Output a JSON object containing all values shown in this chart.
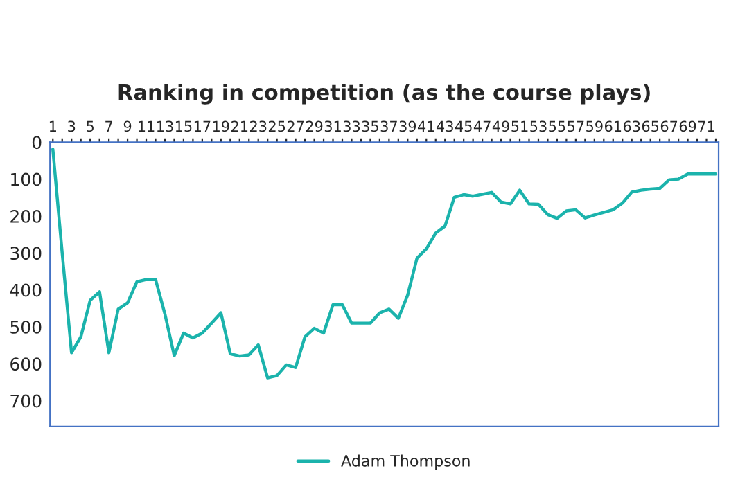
{
  "chart_data": {
    "type": "line",
    "title": "Ranking in competition (as the course plays)",
    "categories": [
      "1",
      null,
      "3",
      null,
      "5",
      null,
      "7",
      null,
      "9",
      null,
      "11",
      null,
      "13",
      null,
      "15",
      null,
      "17",
      null,
      "19",
      null,
      "21",
      null,
      "23",
      null,
      "25",
      null,
      "27",
      null,
      "29",
      null,
      "31",
      null,
      "33",
      null,
      "35",
      null,
      "37",
      null,
      "39",
      null,
      "41",
      null,
      "43",
      null,
      "45",
      null,
      "47",
      null,
      "49",
      null,
      "51",
      null,
      "53",
      null,
      "55",
      null,
      "57",
      null,
      "59",
      null,
      "61",
      null,
      "63",
      null,
      "65",
      null,
      "67",
      null,
      "69",
      null,
      "71",
      null
    ],
    "series": [
      {
        "name": "Adam Thompson",
        "color": "#1bb3ac",
        "values": [
          19,
          300,
          570,
          527,
          428,
          405,
          570,
          452,
          435,
          378,
          372,
          372,
          465,
          578,
          517,
          530,
          517,
          490,
          462,
          573,
          579,
          576,
          549,
          638,
          632,
          603,
          610,
          527,
          504,
          517,
          440,
          440,
          490,
          490,
          490,
          462,
          452,
          477,
          414,
          314,
          289,
          246,
          227,
          149,
          142,
          146,
          141,
          136,
          162,
          167,
          130,
          167,
          168,
          196,
          206,
          186,
          183,
          205,
          197,
          190,
          183,
          165,
          135,
          130,
          127,
          125,
          102,
          100,
          86,
          86,
          86,
          86
        ]
      }
    ],
    "ylim": [
      770,
      0
    ],
    "yticks": [
      0,
      100,
      200,
      300,
      400,
      500,
      600,
      700
    ],
    "grid": false,
    "legend": "bottom",
    "marker": "none",
    "line_style": "solid"
  }
}
